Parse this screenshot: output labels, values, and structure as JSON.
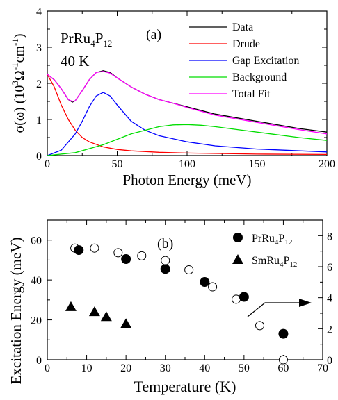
{
  "chart_data": [
    {
      "type": "line",
      "panel_label": "(a)",
      "sample": "PrRu",
      "sample_sub1": "4",
      "sample_mid": "P",
      "sample_sub2": "12",
      "temperature": "40 K",
      "xlabel": "Photon Energy (meV)",
      "ylabel_pre": "σ(ω) (10",
      "ylabel_sup1": "3",
      "ylabel_mid": "Ω",
      "ylabel_sup2": "-1",
      "ylabel_mid2": "cm",
      "ylabel_sup3": "-1",
      "ylabel_post": ")",
      "xlim": [
        0,
        200
      ],
      "ylim": [
        0,
        4
      ],
      "xticks": [
        0,
        50,
        100,
        150,
        200
      ],
      "yticks": [
        0,
        1,
        2,
        3,
        4
      ],
      "legend_position": "top-right",
      "series": [
        {
          "name": "Data",
          "color": "#000000",
          "x": [
            0,
            5,
            10,
            15,
            18,
            20,
            25,
            30,
            35,
            40,
            45,
            50,
            60,
            70,
            80,
            90,
            100,
            120,
            150,
            180,
            200
          ],
          "y": [
            2.25,
            2.1,
            1.85,
            1.55,
            1.48,
            1.52,
            1.8,
            2.1,
            2.3,
            2.35,
            2.3,
            2.15,
            1.9,
            1.7,
            1.55,
            1.45,
            1.35,
            1.15,
            0.95,
            0.75,
            0.65
          ]
        },
        {
          "name": "Drude",
          "color": "#ff0000",
          "x": [
            0,
            5,
            10,
            15,
            20,
            25,
            30,
            40,
            50,
            60,
            80,
            100,
            150,
            200
          ],
          "y": [
            2.25,
            1.9,
            1.4,
            1.0,
            0.7,
            0.5,
            0.38,
            0.24,
            0.17,
            0.13,
            0.09,
            0.07,
            0.04,
            0.03
          ]
        },
        {
          "name": "Gap Excitation",
          "color": "#0000ff",
          "x": [
            0,
            10,
            20,
            25,
            30,
            35,
            40,
            45,
            50,
            60,
            70,
            80,
            100,
            120,
            150,
            200
          ],
          "y": [
            0.0,
            0.15,
            0.6,
            0.95,
            1.35,
            1.65,
            1.75,
            1.65,
            1.4,
            0.95,
            0.7,
            0.55,
            0.38,
            0.27,
            0.18,
            0.1
          ]
        },
        {
          "name": "Background",
          "color": "#00dd00",
          "x": [
            0,
            20,
            40,
            60,
            80,
            90,
            100,
            110,
            120,
            140,
            160,
            180,
            200
          ],
          "y": [
            0.0,
            0.08,
            0.3,
            0.6,
            0.8,
            0.85,
            0.86,
            0.84,
            0.8,
            0.7,
            0.6,
            0.5,
            0.42
          ]
        },
        {
          "name": "Total Fit",
          "color": "#ff00ff",
          "x": [
            0,
            5,
            10,
            15,
            18,
            20,
            25,
            30,
            35,
            40,
            45,
            50,
            60,
            70,
            80,
            90,
            100,
            120,
            150,
            180,
            200
          ],
          "y": [
            2.25,
            2.1,
            1.85,
            1.55,
            1.5,
            1.52,
            1.8,
            2.1,
            2.3,
            2.33,
            2.28,
            2.15,
            1.9,
            1.7,
            1.55,
            1.45,
            1.33,
            1.12,
            0.92,
            0.72,
            0.6
          ]
        }
      ]
    },
    {
      "type": "scatter",
      "panel_label": "(b)",
      "xlabel": "Temperature (K)",
      "ylabel": "Excitation Energy (meV)",
      "xlim": [
        0,
        70
      ],
      "ylim": [
        0,
        70
      ],
      "xticks": [
        0,
        10,
        20,
        30,
        40,
        50,
        60,
        70
      ],
      "yticks": [
        0,
        20,
        40,
        60
      ],
      "y2lim": [
        0,
        9
      ],
      "y2ticks": [
        0,
        2,
        4,
        6,
        8
      ],
      "legend_position": "top-right",
      "series": [
        {
          "name_main": "PrRu",
          "name_sub1": "4",
          "name_mid": "P",
          "name_sub2": "12",
          "marker": "filled-circle",
          "x": [
            8,
            20,
            30,
            40,
            50,
            60
          ],
          "y": [
            55,
            50.5,
            45.5,
            39,
            31.5,
            13
          ]
        },
        {
          "name_main": "SmRu",
          "name_sub1": "4",
          "name_mid": "P",
          "name_sub2": "12",
          "marker": "filled-triangle",
          "x": [
            6,
            12,
            15,
            20
          ],
          "y": [
            26.5,
            24,
            21.5,
            18
          ]
        },
        {
          "name": "",
          "marker": "open-circle",
          "axis": "right",
          "x": [
            7,
            12,
            18,
            24,
            30,
            36,
            42,
            48,
            54,
            60
          ],
          "y": [
            7.2,
            7.2,
            6.9,
            6.7,
            6.4,
            5.8,
            4.7,
            3.9,
            2.2,
            0.0
          ]
        }
      ]
    }
  ]
}
